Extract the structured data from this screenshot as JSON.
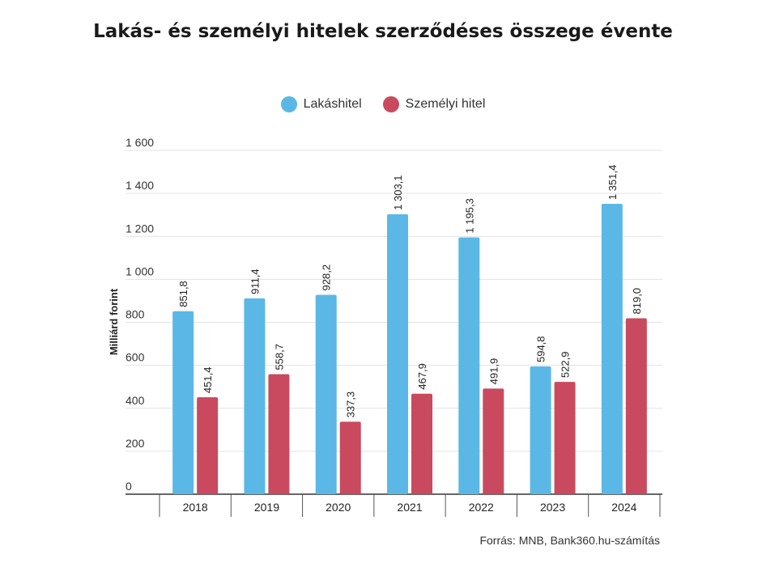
{
  "title": "Lakás- és személyi hitelek szerződéses összege évente",
  "source": "Forrás: MNB, Bank360.hu-számítás",
  "chart_data": {
    "type": "bar",
    "categories": [
      "2018",
      "2019",
      "2020",
      "2021",
      "2022",
      "2023",
      "2024"
    ],
    "series": [
      {
        "name": "Lakáshitel",
        "color": "#5bb8e6",
        "values": [
          851.8,
          911.4,
          928.2,
          1303.1,
          1195.3,
          594.8,
          1351.4
        ],
        "labels": [
          "851,8",
          "911,4",
          "928,2",
          "1 303,1",
          "1 195,3",
          "594,8",
          "1 351,4"
        ]
      },
      {
        "name": "Személyi hitel",
        "color": "#c94a5e",
        "values": [
          451.4,
          558.7,
          337.3,
          467.9,
          491.9,
          522.9,
          819.0
        ],
        "labels": [
          "451,4",
          "558,7",
          "337,3",
          "467,9",
          "491,9",
          "522,9",
          "819,0"
        ]
      }
    ],
    "ylabel": "Milliárd forint",
    "xlabel": "",
    "ylim": [
      0,
      1600
    ],
    "yticks": [
      0,
      200,
      400,
      600,
      800,
      1000,
      1200,
      1400,
      1600
    ],
    "ytick_labels": [
      "0",
      "200",
      "400",
      "600",
      "800",
      "1 000",
      "1 200",
      "1 400",
      "1 600"
    ],
    "grid": true,
    "legend_position": "top"
  }
}
